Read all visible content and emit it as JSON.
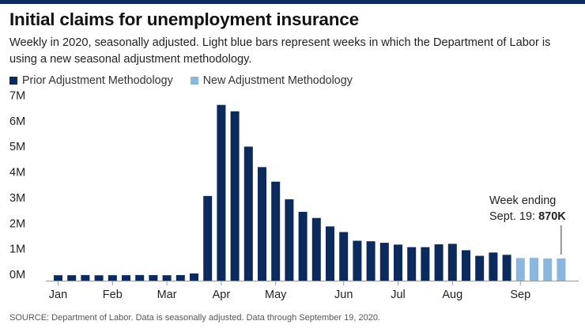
{
  "title": "Initial claims for unemployment insurance",
  "subtitle": "Weekly in 2020, seasonally adjusted. Light blue bars represent weeks in which the Department of Labor is using a new seasonal adjustment methodology.",
  "legend": [
    {
      "label": "Prior Adjustment Methodology",
      "color": "#0d2a5c"
    },
    {
      "label": "New Adjustment Methodology",
      "color": "#8bb6dd"
    }
  ],
  "source": "SOURCE: Department of Labor. Data is seasonally adjusted. Data through September 19, 2020.",
  "chart_data": {
    "type": "bar",
    "title": "Initial claims for unemployment insurance",
    "xlabel": "",
    "ylabel": "",
    "ylim": [
      0,
      7000000
    ],
    "y_ticks": [
      {
        "value": 0,
        "label": "0M"
      },
      {
        "value": 1000000,
        "label": "1M"
      },
      {
        "value": 2000000,
        "label": "2M"
      },
      {
        "value": 3000000,
        "label": "3M"
      },
      {
        "value": 4000000,
        "label": "4M"
      },
      {
        "value": 5000000,
        "label": "5M"
      },
      {
        "value": 6000000,
        "label": "6M"
      },
      {
        "value": 7000000,
        "label": "7M"
      }
    ],
    "month_labels": [
      {
        "label": "Jan",
        "week_index": 0
      },
      {
        "label": "Feb",
        "week_index": 4
      },
      {
        "label": "Mar",
        "week_index": 8
      },
      {
        "label": "Apr",
        "week_index": 12
      },
      {
        "label": "May",
        "week_index": 16
      },
      {
        "label": "Jun",
        "week_index": 21
      },
      {
        "label": "Jul",
        "week_index": 25
      },
      {
        "label": "Aug",
        "week_index": 29
      },
      {
        "label": "Sep",
        "week_index": 34
      }
    ],
    "series": [
      {
        "name": "Prior Adjustment Methodology",
        "color": "#0d2a5c",
        "values": [
          212000,
          212000,
          220000,
          209000,
          213000,
          213000,
          220000,
          217000,
          211000,
          217000,
          282000,
          3310000,
          6870000,
          6620000,
          5240000,
          4440000,
          3870000,
          3180000,
          2690000,
          2450000,
          2120000,
          1900000,
          1560000,
          1540000,
          1480000,
          1410000,
          1310000,
          1310000,
          1420000,
          1440000,
          1190000,
          970000,
          1100000,
          1010000,
          null,
          null,
          null,
          null
        ]
      },
      {
        "name": "New Adjustment Methodology",
        "color": "#8bb6dd",
        "values": [
          null,
          null,
          null,
          null,
          null,
          null,
          null,
          null,
          null,
          null,
          null,
          null,
          null,
          null,
          null,
          null,
          null,
          null,
          null,
          null,
          null,
          null,
          null,
          null,
          null,
          null,
          null,
          null,
          null,
          null,
          null,
          null,
          null,
          null,
          884000,
          893000,
          866000,
          870000
        ]
      }
    ],
    "annotation": {
      "label_line1": "Week ending",
      "label_line2": "Sept. 19: ",
      "value_label": "870K",
      "week_index": 37
    },
    "grid": false,
    "legend_position": "top-left"
  }
}
